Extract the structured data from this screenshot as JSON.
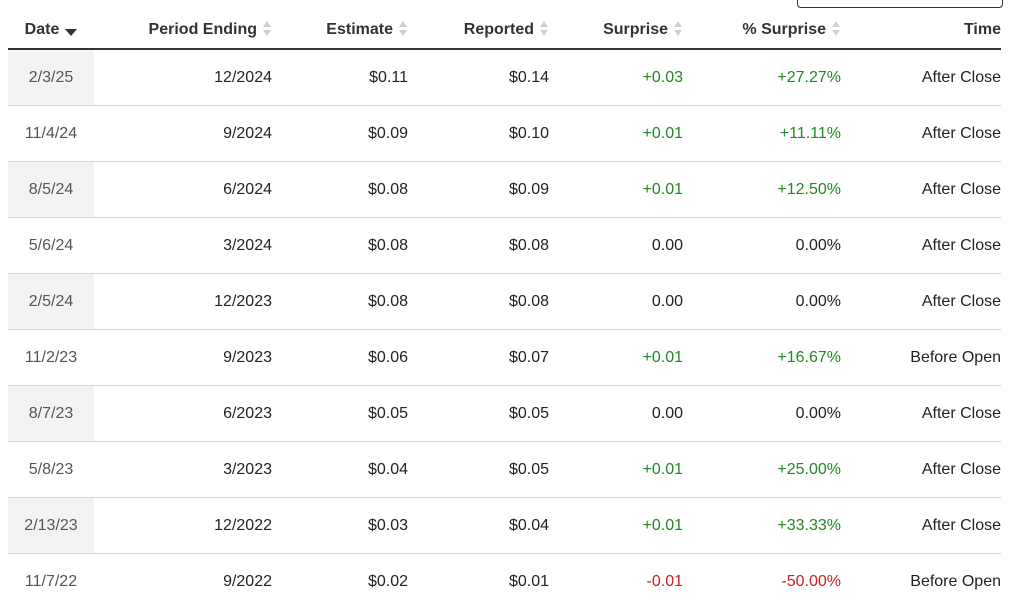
{
  "table": {
    "headers": {
      "date": "Date",
      "period_ending": "Period Ending",
      "estimate": "Estimate",
      "reported": "Reported",
      "surprise": "Surprise",
      "pct_surprise": "% Surprise",
      "time": "Time"
    },
    "sorted_column": "date",
    "sort_direction": "descending",
    "colors": {
      "positive": "#1f8a1f",
      "negative": "#cc1f1f",
      "header_rule": "#333333",
      "row_rule": "#d6d6d6"
    },
    "rows": [
      {
        "date": "2/3/25",
        "period": "12/2024",
        "estimate": "$0.11",
        "reported": "$0.14",
        "surprise": "+0.03",
        "pct": "+27.27%",
        "time": "After Close",
        "tone": "pos"
      },
      {
        "date": "11/4/24",
        "period": "9/2024",
        "estimate": "$0.09",
        "reported": "$0.10",
        "surprise": "+0.01",
        "pct": "+11.11%",
        "time": "After Close",
        "tone": "pos"
      },
      {
        "date": "8/5/24",
        "period": "6/2024",
        "estimate": "$0.08",
        "reported": "$0.09",
        "surprise": "+0.01",
        "pct": "+12.50%",
        "time": "After Close",
        "tone": "pos"
      },
      {
        "date": "5/6/24",
        "period": "3/2024",
        "estimate": "$0.08",
        "reported": "$0.08",
        "surprise": "0.00",
        "pct": "0.00%",
        "time": "After Close",
        "tone": "neutral"
      },
      {
        "date": "2/5/24",
        "period": "12/2023",
        "estimate": "$0.08",
        "reported": "$0.08",
        "surprise": "0.00",
        "pct": "0.00%",
        "time": "After Close",
        "tone": "neutral"
      },
      {
        "date": "11/2/23",
        "period": "9/2023",
        "estimate": "$0.06",
        "reported": "$0.07",
        "surprise": "+0.01",
        "pct": "+16.67%",
        "time": "Before Open",
        "tone": "pos"
      },
      {
        "date": "8/7/23",
        "period": "6/2023",
        "estimate": "$0.05",
        "reported": "$0.05",
        "surprise": "0.00",
        "pct": "0.00%",
        "time": "After Close",
        "tone": "neutral"
      },
      {
        "date": "5/8/23",
        "period": "3/2023",
        "estimate": "$0.04",
        "reported": "$0.05",
        "surprise": "+0.01",
        "pct": "+25.00%",
        "time": "After Close",
        "tone": "pos"
      },
      {
        "date": "2/13/23",
        "period": "12/2022",
        "estimate": "$0.03",
        "reported": "$0.04",
        "surprise": "+0.01",
        "pct": "+33.33%",
        "time": "After Close",
        "tone": "pos"
      },
      {
        "date": "11/7/22",
        "period": "9/2022",
        "estimate": "$0.02",
        "reported": "$0.01",
        "surprise": "-0.01",
        "pct": "-50.00%",
        "time": "Before Open",
        "tone": "neg"
      }
    ]
  }
}
